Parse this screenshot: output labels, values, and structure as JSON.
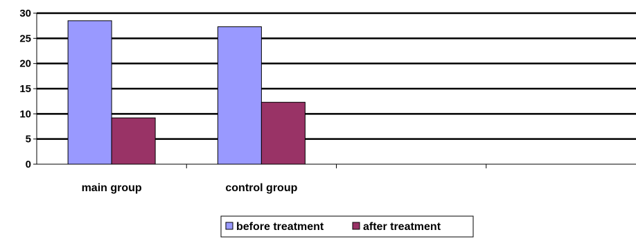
{
  "chart_data": {
    "type": "bar",
    "categories": [
      "main group",
      "control group",
      "",
      ""
    ],
    "series": [
      {
        "name": "before treatment",
        "values": [
          28.5,
          27.3,
          null,
          null
        ],
        "color": "#9999ff"
      },
      {
        "name": "after treatment",
        "values": [
          9.2,
          12.3,
          null,
          null
        ],
        "color": "#993366"
      }
    ],
    "y_ticks": [
      "0",
      "5",
      "10",
      "15",
      "20",
      "25",
      "30"
    ],
    "ylim": [
      0,
      30
    ],
    "grid": true,
    "legend_position": "bottom"
  }
}
